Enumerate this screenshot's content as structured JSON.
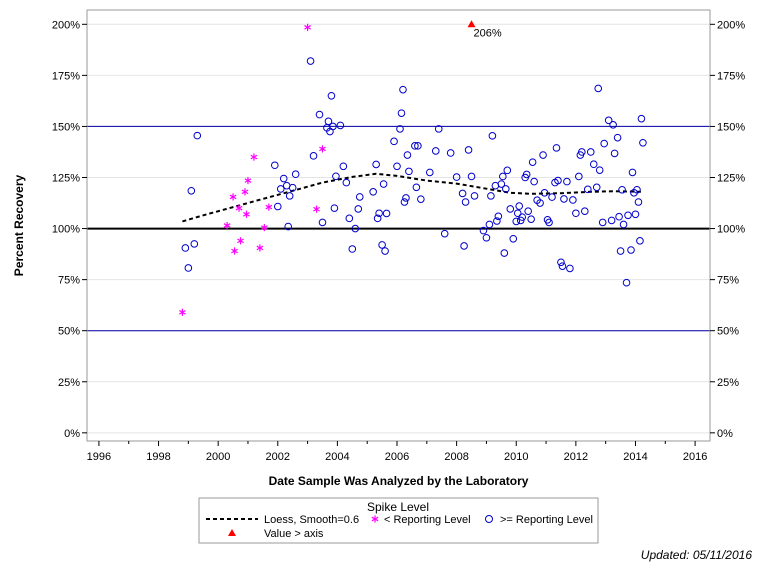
{
  "chart_data": {
    "type": "scatter",
    "xlabel": "Date Sample Was Analyzed by the Laboratory",
    "ylabel": "Percent Recovery",
    "xlim": [
      1995.6,
      2016.5
    ],
    "ylim": [
      -4,
      207
    ],
    "x_ticks": [
      1996,
      1998,
      2000,
      2002,
      2004,
      2006,
      2008,
      2010,
      2012,
      2014,
      2016
    ],
    "y_ticks": [
      0,
      25,
      50,
      75,
      100,
      125,
      150,
      175,
      200
    ],
    "y_tick_suffix": "%",
    "grid": "horizontal light gray",
    "reference_lines": [
      {
        "y": 100,
        "color": "#000000",
        "style": "thick"
      },
      {
        "y": 50,
        "color": "#0000aa",
        "style": "thin"
      },
      {
        "y": 150,
        "color": "#0000aa",
        "style": "thin"
      }
    ],
    "series": [
      {
        "name": ">= Reporting Level",
        "marker": "circle",
        "color": "#0000cc",
        "points": [
          [
            1998.9,
            90.5
          ],
          [
            1999.0,
            80.7
          ],
          [
            1999.1,
            118.5
          ],
          [
            1999.2,
            92.5
          ],
          [
            1999.3,
            145.5
          ],
          [
            2001.9,
            131
          ],
          [
            2002.0,
            110.8
          ],
          [
            2002.1,
            119.4
          ],
          [
            2002.2,
            124.5
          ],
          [
            2002.3,
            121
          ],
          [
            2002.35,
            101
          ],
          [
            2002.4,
            116
          ],
          [
            2002.5,
            120
          ],
          [
            2002.6,
            126.6
          ],
          [
            2003.1,
            182
          ],
          [
            2003.2,
            135.6
          ],
          [
            2003.4,
            155.8
          ],
          [
            2003.5,
            103
          ],
          [
            2003.65,
            149.3
          ],
          [
            2003.7,
            152.5
          ],
          [
            2003.75,
            147.5
          ],
          [
            2003.8,
            165
          ],
          [
            2003.85,
            150
          ],
          [
            2003.9,
            110
          ],
          [
            2003.95,
            125.6
          ],
          [
            2004.1,
            150.5
          ],
          [
            2004.2,
            130.5
          ],
          [
            2004.3,
            122.5
          ],
          [
            2004.4,
            105
          ],
          [
            2004.5,
            90
          ],
          [
            2004.6,
            100
          ],
          [
            2004.7,
            109.6
          ],
          [
            2004.75,
            115.5
          ],
          [
            2005.2,
            118
          ],
          [
            2005.3,
            131.4
          ],
          [
            2005.35,
            105
          ],
          [
            2005.4,
            107.5
          ],
          [
            2005.5,
            92
          ],
          [
            2005.55,
            121.8
          ],
          [
            2005.6,
            89
          ],
          [
            2005.65,
            107.4
          ],
          [
            2005.9,
            142.7
          ],
          [
            2006.0,
            130.5
          ],
          [
            2006.1,
            148.8
          ],
          [
            2006.15,
            156.5
          ],
          [
            2006.2,
            168
          ],
          [
            2006.25,
            113
          ],
          [
            2006.3,
            115
          ],
          [
            2006.35,
            136
          ],
          [
            2006.4,
            128
          ],
          [
            2006.6,
            140.5
          ],
          [
            2006.65,
            120.2
          ],
          [
            2006.7,
            140.5
          ],
          [
            2006.8,
            114.4
          ],
          [
            2007.1,
            127.5
          ],
          [
            2007.3,
            138
          ],
          [
            2007.4,
            148.8
          ],
          [
            2007.6,
            97.5
          ],
          [
            2007.8,
            137
          ],
          [
            2008.0,
            125.2
          ],
          [
            2008.2,
            117.2
          ],
          [
            2008.25,
            91.5
          ],
          [
            2008.3,
            113
          ],
          [
            2008.4,
            138.5
          ],
          [
            2008.5,
            125.5
          ],
          [
            2008.6,
            116
          ],
          [
            2008.9,
            99
          ],
          [
            2009.0,
            95.5
          ],
          [
            2009.1,
            102
          ],
          [
            2009.15,
            116
          ],
          [
            2009.2,
            145.4
          ],
          [
            2009.3,
            121
          ],
          [
            2009.35,
            103.7
          ],
          [
            2009.4,
            106
          ],
          [
            2009.5,
            121.8
          ],
          [
            2009.55,
            125.5
          ],
          [
            2009.6,
            88
          ],
          [
            2009.65,
            119.4
          ],
          [
            2009.7,
            128.5
          ],
          [
            2009.8,
            109.6
          ],
          [
            2009.9,
            95
          ],
          [
            2010.0,
            103.5
          ],
          [
            2010.05,
            107.5
          ],
          [
            2010.1,
            111
          ],
          [
            2010.15,
            104
          ],
          [
            2010.2,
            105.6
          ],
          [
            2010.3,
            125
          ],
          [
            2010.35,
            126.5
          ],
          [
            2010.4,
            108.5
          ],
          [
            2010.5,
            104.6
          ],
          [
            2010.55,
            132.5
          ],
          [
            2010.6,
            123
          ],
          [
            2010.7,
            113.9
          ],
          [
            2010.8,
            112.5
          ],
          [
            2010.9,
            136
          ],
          [
            2010.95,
            117.5
          ],
          [
            2011.05,
            104.3
          ],
          [
            2011.1,
            103
          ],
          [
            2011.2,
            115.4
          ],
          [
            2011.3,
            122.5
          ],
          [
            2011.35,
            139.5
          ],
          [
            2011.4,
            123.5
          ],
          [
            2011.5,
            83.5
          ],
          [
            2011.55,
            81.6
          ],
          [
            2011.6,
            114.5
          ],
          [
            2011.7,
            123
          ],
          [
            2011.8,
            80.5
          ],
          [
            2011.9,
            114
          ],
          [
            2012.0,
            107.5
          ],
          [
            2012.1,
            125.5
          ],
          [
            2012.15,
            136
          ],
          [
            2012.2,
            137.5
          ],
          [
            2012.3,
            108.5
          ],
          [
            2012.4,
            119.2
          ],
          [
            2012.5,
            137.5
          ],
          [
            2012.6,
            131.5
          ],
          [
            2012.7,
            120.2
          ],
          [
            2012.75,
            168.6
          ],
          [
            2012.8,
            128.6
          ],
          [
            2012.9,
            103
          ],
          [
            2012.95,
            141.6
          ],
          [
            2013.1,
            153
          ],
          [
            2013.2,
            104
          ],
          [
            2013.25,
            150.8
          ],
          [
            2013.3,
            136.8
          ],
          [
            2013.4,
            144.5
          ],
          [
            2013.45,
            105.8
          ],
          [
            2013.5,
            89
          ],
          [
            2013.55,
            119
          ],
          [
            2013.6,
            102
          ],
          [
            2013.7,
            73.5
          ],
          [
            2013.75,
            106.5
          ],
          [
            2013.85,
            89.5
          ],
          [
            2013.9,
            127.5
          ],
          [
            2013.95,
            117.5
          ],
          [
            2014.0,
            107
          ],
          [
            2014.05,
            119
          ],
          [
            2014.1,
            113
          ],
          [
            2014.15,
            94
          ],
          [
            2014.2,
            153.8
          ],
          [
            2014.25,
            142
          ]
        ]
      },
      {
        "name": "< Reporting Level",
        "marker": "asterisk",
        "color": "#ff00ff",
        "points": [
          [
            1998.8,
            59
          ],
          [
            2000.3,
            101.5
          ],
          [
            2000.5,
            115.5
          ],
          [
            2000.55,
            89
          ],
          [
            2000.7,
            110
          ],
          [
            2000.75,
            94
          ],
          [
            2000.9,
            118
          ],
          [
            2000.95,
            107
          ],
          [
            2001.0,
            123.5
          ],
          [
            2001.2,
            135
          ],
          [
            2001.4,
            90.5
          ],
          [
            2001.55,
            100.5
          ],
          [
            2001.7,
            110.5
          ],
          [
            2003.0,
            198.5
          ],
          [
            2003.3,
            109.5
          ],
          [
            2003.5,
            139
          ]
        ]
      },
      {
        "name": "Value > axis",
        "marker": "triangle",
        "color": "#ff0000",
        "points": [
          [
            2008.5,
            206
          ]
        ],
        "point_labels": [
          "206%"
        ]
      },
      {
        "name": "Loess, Smooth=0.6",
        "marker": "none",
        "line": "dashed",
        "color": "#000000",
        "points": [
          [
            1998.8,
            103.5
          ],
          [
            1999.5,
            106.5
          ],
          [
            2000.5,
            110.5
          ],
          [
            2001.5,
            114.5
          ],
          [
            2002.5,
            118.5
          ],
          [
            2003.5,
            122.5
          ],
          [
            2004.5,
            125.3
          ],
          [
            2005.3,
            126.8
          ],
          [
            2006.0,
            125.8
          ],
          [
            2007.0,
            123.5
          ],
          [
            2008.0,
            122
          ],
          [
            2009.0,
            119.5
          ],
          [
            2009.8,
            117.5
          ],
          [
            2010.5,
            117
          ],
          [
            2011.5,
            117.3
          ],
          [
            2012.5,
            118
          ],
          [
            2013.3,
            118.3
          ],
          [
            2014.2,
            118
          ]
        ]
      }
    ],
    "legend": {
      "title": "Spike Level",
      "placement": "bottom-center",
      "entries": [
        {
          "label": "Loess, Smooth=0.6",
          "symbol": "dashed-line"
        },
        {
          "label": "< Reporting Level",
          "symbol": "magenta-asterisk"
        },
        {
          "label": ">= Reporting Level",
          "symbol": "blue-circle"
        },
        {
          "label": "Value > axis",
          "symbol": "red-triangle"
        }
      ]
    }
  },
  "footer": {
    "updated": "Updated: 05/11/2016"
  }
}
